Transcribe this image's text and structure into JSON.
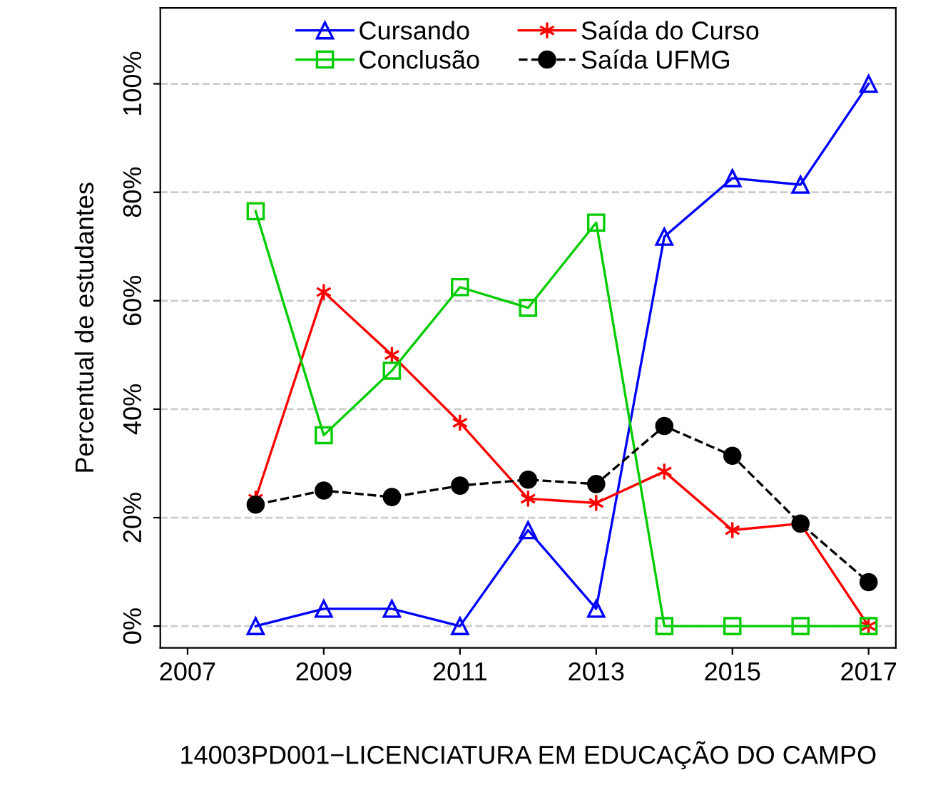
{
  "chart_data": {
    "type": "line",
    "xlabel": "14003PD001−LICENCIATURA EM EDUCAÇÃO DO CAMPO",
    "ylabel": "Percentual de estudantes",
    "x": [
      2008,
      2009,
      2010,
      2011,
      2012,
      2013,
      2014,
      2015,
      2016,
      2017
    ],
    "series": [
      {
        "name": "Cursando",
        "color": "#0000ff",
        "marker": "triangle",
        "line_style": "solid",
        "values": [
          0,
          3.2,
          3.2,
          0,
          17.7,
          3.2,
          71.8,
          82.6,
          81.4,
          100
        ]
      },
      {
        "name": "Saída do Curso",
        "color": "#ff0000",
        "marker": "cross",
        "line_style": "solid",
        "values": [
          23.5,
          61.6,
          50,
          37.5,
          23.5,
          22.7,
          28.5,
          17.7,
          18.9,
          0
        ]
      },
      {
        "name": "Conclusão",
        "color": "#00cc00",
        "marker": "square",
        "line_style": "solid",
        "values": [
          76.5,
          35.2,
          47.1,
          62.5,
          58.7,
          74.4,
          0,
          0,
          0,
          0
        ]
      },
      {
        "name": "Saída UFMG",
        "color": "#000000",
        "marker": "circle",
        "line_style": "dashed",
        "values": [
          22.4,
          25,
          23.8,
          25.9,
          27,
          26.2,
          36.9,
          31.4,
          18.9,
          8.1
        ]
      }
    ],
    "xlim": [
      2006.6,
      2017.4
    ],
    "xticks": [
      2007,
      2009,
      2011,
      2013,
      2015,
      2017
    ],
    "ylim": [
      -4,
      114
    ],
    "yticks": [
      {
        "value": 0,
        "label": "0%"
      },
      {
        "value": 20,
        "label": "20%"
      },
      {
        "value": 40,
        "label": "40%"
      },
      {
        "value": 60,
        "label": "60%"
      },
      {
        "value": 80,
        "label": "80%"
      },
      {
        "value": 100,
        "label": "100%"
      }
    ],
    "grid": "y",
    "legend": "top"
  }
}
